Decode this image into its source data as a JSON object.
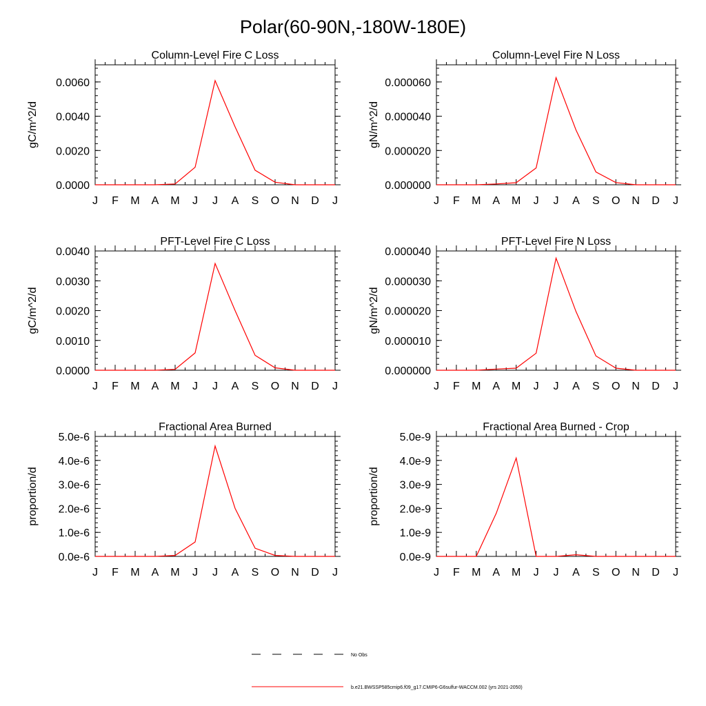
{
  "figure": {
    "title": "Polar(60-90N,-180W-180E)",
    "legend": {
      "placement": "bottom-center",
      "entries": [
        {
          "label": "No Obs",
          "style": "dashed",
          "color": "#000000"
        },
        {
          "label": "b.e21.BWSSP585cmip6.f09_g17.CMIP6-G6sulfur-WACCM.002 (yrs 2021-2050)",
          "style": "solid",
          "color": "#ff0000"
        }
      ]
    }
  },
  "chart_data": [
    {
      "type": "line",
      "title": "Column-Level Fire C Loss",
      "xlabel": "",
      "ylabel": "gC/m^2/d",
      "x": [
        "J",
        "F",
        "M",
        "A",
        "M",
        "J",
        "J",
        "A",
        "S",
        "O",
        "N",
        "D",
        "J"
      ],
      "ylim": [
        0,
        0.007
      ],
      "yticks": [
        "0.0000",
        "0.0020",
        "0.0040",
        "0.0060"
      ],
      "ytick_values": [
        0,
        0.002,
        0.004,
        0.006
      ],
      "series": [
        {
          "color": "#ff0000",
          "values": [
            0,
            0,
            0,
            0,
            5e-05,
            0.00102,
            0.00608,
            0.00338,
            0.00085,
            0.00015,
            0,
            0,
            0
          ]
        }
      ]
    },
    {
      "type": "line",
      "title": "Column-Level Fire N Loss",
      "xlabel": "",
      "ylabel": "gN/m^2/d",
      "x": [
        "J",
        "F",
        "M",
        "A",
        "M",
        "J",
        "J",
        "A",
        "S",
        "O",
        "N",
        "D",
        "J"
      ],
      "ylim": [
        0,
        7e-05
      ],
      "yticks": [
        "0.000000",
        "0.000020",
        "0.000040",
        "0.000060"
      ],
      "ytick_values": [
        0,
        2e-05,
        4e-05,
        6e-05
      ],
      "series": [
        {
          "color": "#ff0000",
          "values": [
            0,
            0,
            0,
            5e-07,
            1.2e-06,
            9.8e-06,
            6.25e-05,
            3.2e-05,
            7.5e-06,
            1.3e-06,
            0,
            0,
            0
          ]
        }
      ]
    },
    {
      "type": "line",
      "title": "PFT-Level Fire C Loss",
      "xlabel": "",
      "ylabel": "gC/m^2/d",
      "x": [
        "J",
        "F",
        "M",
        "A",
        "M",
        "J",
        "J",
        "A",
        "S",
        "O",
        "N",
        "D",
        "J"
      ],
      "ylim": [
        0,
        0.004
      ],
      "yticks": [
        "0.0000",
        "0.0010",
        "0.0020",
        "0.0030",
        "0.0040"
      ],
      "ytick_values": [
        0,
        0.001,
        0.002,
        0.003,
        0.004
      ],
      "series": [
        {
          "color": "#ff0000",
          "values": [
            0,
            0,
            0,
            0,
            3e-05,
            0.00058,
            0.00358,
            0.002,
            0.0005,
            8e-05,
            0,
            0,
            0
          ]
        }
      ]
    },
    {
      "type": "line",
      "title": "PFT-Level Fire N Loss",
      "xlabel": "",
      "ylabel": "gN/m^2/d",
      "x": [
        "J",
        "F",
        "M",
        "A",
        "M",
        "J",
        "J",
        "A",
        "S",
        "O",
        "N",
        "D",
        "J"
      ],
      "ylim": [
        0,
        4e-05
      ],
      "yticks": [
        "0.000000",
        "0.000010",
        "0.000020",
        "0.000030",
        "0.000040"
      ],
      "ytick_values": [
        0,
        1e-05,
        2e-05,
        3e-05,
        4e-05
      ],
      "series": [
        {
          "color": "#ff0000",
          "values": [
            0,
            0,
            0,
            4e-07,
            7e-07,
            5.7e-06,
            3.76e-05,
            1.97e-05,
            4.8e-06,
            7e-07,
            0,
            0,
            0
          ]
        }
      ]
    },
    {
      "type": "line",
      "title": "Fractional Area Burned",
      "xlabel": "",
      "ylabel": "proportion/d",
      "x": [
        "J",
        "F",
        "M",
        "A",
        "M",
        "J",
        "J",
        "A",
        "S",
        "O",
        "N",
        "D",
        "J"
      ],
      "ylim": [
        0,
        5e-06
      ],
      "yticks": [
        "0.0e-6",
        "1.0e-6",
        "2.0e-6",
        "3.0e-6",
        "4.0e-6",
        "5.0e-6"
      ],
      "ytick_values": [
        0,
        1e-06,
        2e-06,
        3e-06,
        4e-06,
        5e-06
      ],
      "series": [
        {
          "color": "#ff0000",
          "values": [
            0,
            0,
            0,
            0,
            4e-08,
            6e-07,
            4.6e-06,
            2e-06,
            3.4e-07,
            4e-08,
            0,
            0,
            0
          ]
        }
      ]
    },
    {
      "type": "line",
      "title": "Fractional Area Burned - Crop",
      "xlabel": "",
      "ylabel": "proportion/d",
      "x": [
        "J",
        "F",
        "M",
        "A",
        "M",
        "J",
        "J",
        "A",
        "S",
        "O",
        "N",
        "D",
        "J"
      ],
      "ylim": [
        0,
        5e-09
      ],
      "yticks": [
        "0.0e-9",
        "1.0e-9",
        "2.0e-9",
        "3.0e-9",
        "4.0e-9",
        "5.0e-9"
      ],
      "ytick_values": [
        0,
        1e-09,
        2e-09,
        3e-09,
        4e-09,
        5e-09
      ],
      "series": [
        {
          "color": "#ff0000",
          "values": [
            0,
            0,
            0,
            1.8e-09,
            4.1e-09,
            0,
            0,
            7e-11,
            0,
            0,
            0,
            0,
            0
          ]
        }
      ]
    }
  ]
}
